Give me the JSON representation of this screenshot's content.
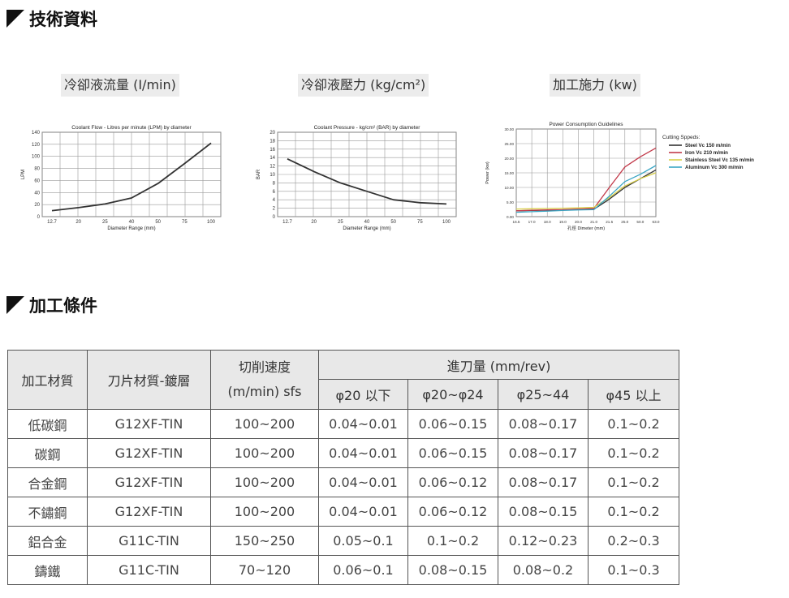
{
  "sections": {
    "tech_title": "技術資料",
    "cond_title": "加工條件"
  },
  "charts": {
    "flow": {
      "heading": "冷卻液流量 (I/min)",
      "chart_data": {
        "type": "line",
        "title": "Coolant Flow - Litres per minute (LPM) by diameter",
        "xlabel": "Diameter Range (mm)",
        "ylabel": "LPM",
        "x_ticks": [
          "12.7",
          "20",
          "25",
          "40",
          "50",
          "75",
          "100"
        ],
        "y_ticks": [
          0,
          20,
          40,
          60,
          80,
          100,
          120,
          140
        ],
        "ylim": [
          0,
          140
        ],
        "grid": true,
        "series": [
          {
            "color": "#333333",
            "x": [
              "12.7",
              "20",
              "25",
              "40",
              "50",
              "75",
              "100"
            ],
            "values": [
              10,
              15,
              21,
              31,
              55,
              88,
              122
            ]
          }
        ]
      }
    },
    "pressure": {
      "heading": "冷卻液壓力 (kg/cm²)",
      "chart_data": {
        "type": "line",
        "title": "Coolant Pressure - kg/cm² (BAR) by diameter",
        "xlabel": "Diameter Range (mm)",
        "ylabel": "BAR",
        "x_ticks": [
          "12.7",
          "20",
          "25",
          "40",
          "50",
          "75",
          "100"
        ],
        "y_ticks": [
          0,
          2,
          4,
          6,
          8,
          10,
          12,
          14,
          16,
          18,
          20
        ],
        "ylim": [
          0,
          20
        ],
        "grid": true,
        "series": [
          {
            "color": "#333333",
            "x": [
              "12.7",
              "20",
              "25",
              "40",
              "50",
              "75",
              "100"
            ],
            "values": [
              13.7,
              10.7,
              8,
              6,
              4,
              3.3,
              3
            ]
          }
        ]
      }
    },
    "power": {
      "heading": "加工施力 (kw)",
      "chart_data": {
        "type": "line",
        "title": "Power Consumption Guidelines",
        "xlabel": "孔徑 Dimeter (mm)",
        "ylabel": "Power (kw)",
        "x_ticks": [
          "16.5",
          "17.0",
          "18.0",
          "19.0",
          "20.0",
          "21.0",
          "21.5",
          "25.0",
          "50.0",
          "63.0"
        ],
        "y_ticks": [
          "0.00",
          "5.00",
          "10.00",
          "15.00",
          "20.00",
          "25.00",
          "30.00"
        ],
        "ylim": [
          0,
          30
        ],
        "grid": true,
        "legend_title": "Cutting Sppeds:",
        "legend_position": "right",
        "series": [
          {
            "name": "Steel Vc 150 m/min",
            "color": "#333333",
            "values": [
              2,
              2.1,
              2.2,
              2.3,
              2.4,
              2.5,
              6,
              10,
              13,
              16
            ]
          },
          {
            "name": "Iron Vc 210 m/min",
            "color": "#c23a4a",
            "values": [
              2,
              2.2,
              2.3,
              2.4,
              2.6,
              2.8,
              10,
              17,
              20.5,
              23.5
            ]
          },
          {
            "name": "Stainless Steel Vc 135 m/min",
            "color": "#d9d04a",
            "values": [
              2.6,
              2.7,
              2.8,
              2.9,
              3,
              3.2,
              6.5,
              10.5,
              13,
              15
            ]
          },
          {
            "name": "Aluminum Vc 300 m/min",
            "color": "#3aa6c4",
            "values": [
              1.5,
              1.7,
              1.9,
              2.1,
              2.3,
              2.4,
              7,
              12,
              14.5,
              17.5
            ]
          }
        ]
      }
    }
  },
  "table": {
    "headers": {
      "material": "加工材質",
      "insert": "刀片材質-鍍層",
      "speed_line1": "切削速度",
      "speed_line2": "(m/min) sfs",
      "feed": "進刀量 (mm/rev)",
      "feed_cols": [
        "φ20 以下",
        "φ20~φ24",
        "φ25~44",
        "φ45 以上"
      ]
    },
    "rows": [
      [
        "低碳鋼",
        "G12XF-TIN",
        "100~200",
        "0.04~0.01",
        "0.06~0.15",
        "0.08~0.17",
        "0.1~0.2"
      ],
      [
        "碳鋼",
        "G12XF-TIN",
        "100~200",
        "0.04~0.01",
        "0.06~0.15",
        "0.08~0.17",
        "0.1~0.2"
      ],
      [
        "合金鋼",
        "G12XF-TIN",
        "100~200",
        "0.04~0.01",
        "0.06~0.12",
        "0.08~0.17",
        "0.1~0.2"
      ],
      [
        "不鏽鋼",
        "G12XF-TIN",
        "100~200",
        "0.04~0.01",
        "0.06~0.12",
        "0.08~0.15",
        "0.1~0.2"
      ],
      [
        "鋁合金",
        "G11C-TIN",
        "150~250",
        "0.05~0.1",
        "0.1~0.2",
        "0.12~0.23",
        "0.2~0.3"
      ],
      [
        "鑄鐵",
        "G11C-TIN",
        "70~120",
        "0.06~0.1",
        "0.08~0.15",
        "0.08~0.2",
        "0.1~0.3"
      ]
    ]
  }
}
